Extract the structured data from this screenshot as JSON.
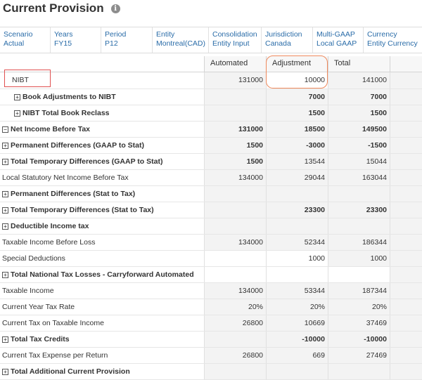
{
  "header": {
    "title": "Current Provision",
    "info_icon": "info-icon"
  },
  "pov": [
    {
      "label": "Scenario",
      "value": "Actual"
    },
    {
      "label": "Years",
      "value": "FY15"
    },
    {
      "label": "Period",
      "value": "P12"
    },
    {
      "label": "Entity",
      "value": "Montreal(CAD)"
    },
    {
      "label": "Consolidation",
      "value": "Entity Input"
    },
    {
      "label": "Jurisdiction",
      "value": "Canada"
    },
    {
      "label": "Multi-GAAP",
      "value": "Local GAAP"
    },
    {
      "label": "Currency",
      "value": "Entity Currency"
    }
  ],
  "columns": [
    "Automated",
    "Adjustment",
    "Total"
  ],
  "rows": [
    {
      "label": "NIBT",
      "automated": "131000",
      "adjustment": "10000",
      "total": "141000"
    },
    {
      "label": "Book Adjustments to NIBT",
      "automated": "",
      "adjustment": "7000",
      "total": "7000"
    },
    {
      "label": "NIBT Total Book Reclass",
      "automated": "",
      "adjustment": "1500",
      "total": "1500"
    },
    {
      "label": "Net Income Before Tax",
      "automated": "131000",
      "adjustment": "18500",
      "total": "149500"
    },
    {
      "label": "Permanent Differences (GAAP to Stat)",
      "automated": "1500",
      "adjustment": "-3000",
      "total": "-1500"
    },
    {
      "label": "Total Temporary Differences (GAAP to Stat)",
      "automated": "1500",
      "adjustment": "13544",
      "total": "15044"
    },
    {
      "label": "Local Statutory Net Income Before Tax",
      "automated": "134000",
      "adjustment": "29044",
      "total": "163044"
    },
    {
      "label": "Permanent Differences (Stat to Tax)",
      "automated": "",
      "adjustment": "",
      "total": ""
    },
    {
      "label": "Total Temporary Differences (Stat to Tax)",
      "automated": "",
      "adjustment": "23300",
      "total": "23300"
    },
    {
      "label": "Deductible Income tax",
      "automated": "",
      "adjustment": "",
      "total": ""
    },
    {
      "label": "Taxable Income Before Loss",
      "automated": "134000",
      "adjustment": "52344",
      "total": "186344"
    },
    {
      "label": "Special Deductions",
      "automated": "",
      "adjustment": "1000",
      "total": "1000"
    },
    {
      "label": "Total National Tax Losses - Carryforward Automated",
      "automated": "",
      "adjustment": "",
      "total": ""
    },
    {
      "label": "Taxable Income",
      "automated": "134000",
      "adjustment": "53344",
      "total": "187344"
    },
    {
      "label": "Current Year Tax Rate",
      "automated": "20%",
      "adjustment": "20%",
      "total": "20%"
    },
    {
      "label": "Current Tax on Taxable Income",
      "automated": "26800",
      "adjustment": "10669",
      "total": "37469"
    },
    {
      "label": "Total Tax Credits",
      "automated": "",
      "adjustment": "-10000",
      "total": "-10000"
    },
    {
      "label": "Current Tax Expense per Return",
      "automated": "26800",
      "adjustment": "669",
      "total": "27469"
    },
    {
      "label": "Total Additional Current Provision",
      "automated": "",
      "adjustment": "",
      "total": ""
    }
  ]
}
